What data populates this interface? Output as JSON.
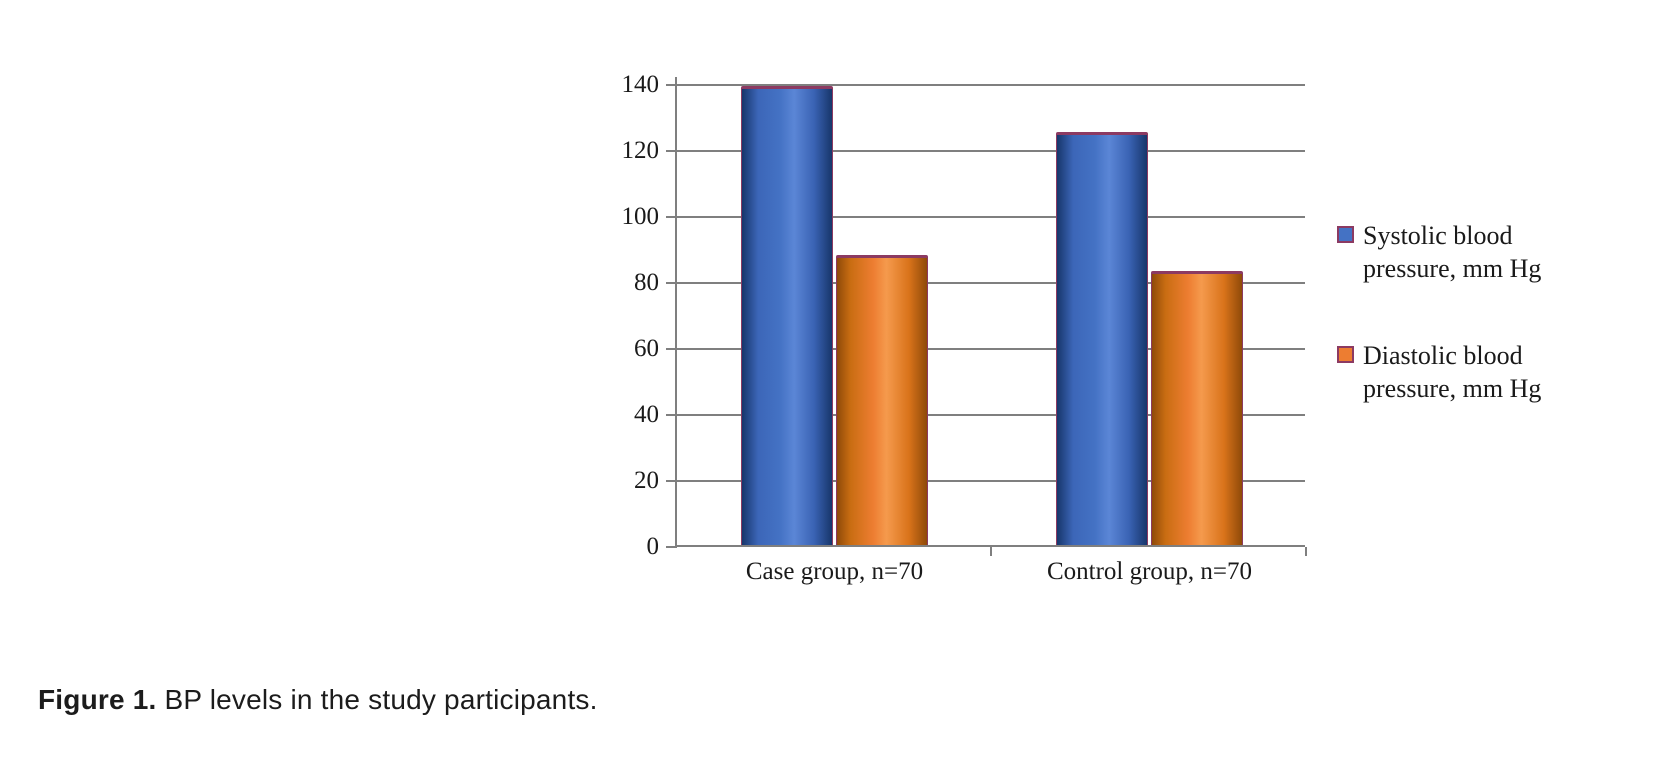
{
  "figure": {
    "caption_label": "Figure 1.",
    "caption_text": " BP levels in the study participants."
  },
  "colors": {
    "systolic_fill": "#4472c4",
    "systolic_edge": "#17366b",
    "diastolic_fill": "#ed7d31",
    "diastolic_edge": "#8f4a09",
    "bar_outline": "#8c3a62",
    "grid": "#7f7f7f",
    "text": "#1a1a1a"
  },
  "chart_data": {
    "type": "bar",
    "title": "",
    "xlabel": "",
    "ylabel": "",
    "categories": [
      "Case group, n=70",
      "Control group, n=70"
    ],
    "series": [
      {
        "name": "Systolic blood pressure, mm Hg",
        "values": [
          139,
          125
        ]
      },
      {
        "name": "Diastolic blood pressure, mm Hg",
        "values": [
          88,
          83
        ]
      }
    ],
    "legend": [
      {
        "line1": "Systolic blood",
        "line2": "pressure, mm Hg"
      },
      {
        "line1": "Diastolic blood",
        "line2": "pressure, mm Hg"
      }
    ],
    "ylim": [
      0,
      140
    ],
    "yticks": [
      140,
      120,
      100,
      80,
      60,
      40,
      20,
      0
    ],
    "grid": true,
    "legend_position": "right"
  }
}
